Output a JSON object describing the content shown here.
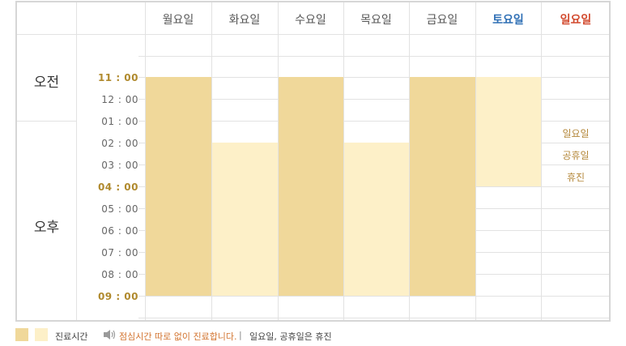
{
  "days": [
    {
      "label": "월요일",
      "type": "weekday"
    },
    {
      "label": "화요일",
      "type": "weekday"
    },
    {
      "label": "수요일",
      "type": "weekday"
    },
    {
      "label": "목요일",
      "type": "weekday"
    },
    {
      "label": "금요일",
      "type": "weekday"
    },
    {
      "label": "토요일",
      "type": "saturday"
    },
    {
      "label": "일요일",
      "type": "sunday"
    }
  ],
  "periods": {
    "am": "오전",
    "pm": "오후"
  },
  "times": [
    "11 : 00",
    "12 : 00",
    "01 : 00",
    "02 : 00",
    "03 : 00",
    "04 : 00",
    "05 : 00",
    "06 : 00",
    "07 : 00",
    "08 : 00",
    "09 : 00"
  ],
  "highlighted_times": [
    "11 : 00",
    "04 : 00",
    "09 : 00"
  ],
  "hours": [
    {
      "day": "월요일",
      "start": "11 : 00",
      "end": "09 : 00",
      "shade": "dark"
    },
    {
      "day": "화요일",
      "start": "02 : 00",
      "end": "09 : 00",
      "shade": "light"
    },
    {
      "day": "수요일",
      "start": "11 : 00",
      "end": "09 : 00",
      "shade": "dark"
    },
    {
      "day": "목요일",
      "start": "02 : 00",
      "end": "09 : 00",
      "shade": "light"
    },
    {
      "day": "금요일",
      "start": "11 : 00",
      "end": "09 : 00",
      "shade": "dark"
    },
    {
      "day": "토요일",
      "start": "11 : 00",
      "end": "04 : 00",
      "shade": "light"
    }
  ],
  "sunday_note": [
    "일요일",
    "공휴일",
    "휴진"
  ],
  "legend": {
    "label": "진료시간",
    "note_icon": "speaker-icon",
    "note": "점심시간 따로 없이 진료합니다.",
    "separator": "|",
    "closed": "일요일, 공휴일은 휴진"
  },
  "colors": {
    "dark": "#f0d89a",
    "light": "#fdf0c8",
    "saturday": "#2f6fb5",
    "sunday": "#d24a2e",
    "time_highlight": "#b08a2e",
    "note": "#d2732e"
  }
}
